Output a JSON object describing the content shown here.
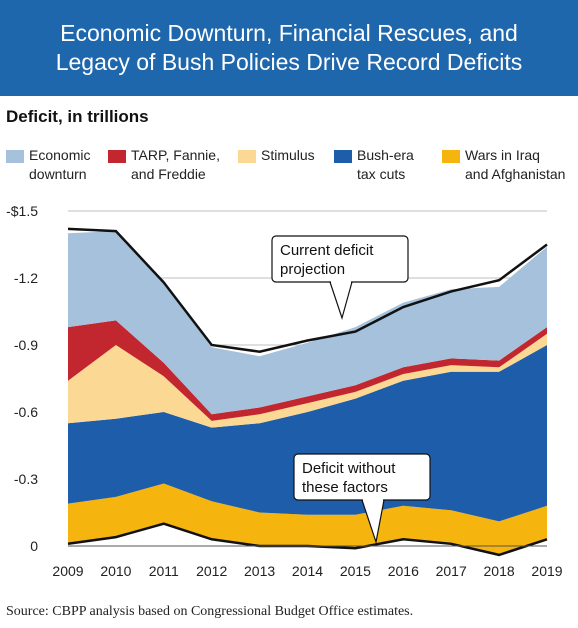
{
  "title": "Economic Downturn, Financial Rescues, and Legacy of Bush Policies Drive Record Deficits",
  "subtitle": "Deficit, in trillions",
  "source": "Source: CBPP analysis based on Congressional Budget Office estimates.",
  "callouts": {
    "current": "Current deficit\nprojection",
    "without": "Deficit without\nthese factors"
  },
  "colors": {
    "title_bg": "#1f67ad",
    "economic": "#a6c1dc",
    "tarp": "#c2262e",
    "stimulus": "#fbd893",
    "bush": "#1d5da9",
    "wars": "#f6b40f"
  },
  "chart_data": {
    "type": "area",
    "x": [
      "2009",
      "2010",
      "2011",
      "2012",
      "2013",
      "2014",
      "2015",
      "2016",
      "2017",
      "2018",
      "2019"
    ],
    "y_ticks": [
      "-$1.5",
      "-1.2",
      "-0.9",
      "-0.6",
      "-0.3",
      "0"
    ],
    "ylim": [
      0,
      -1.5
    ],
    "series": [
      {
        "name": "Wars in Iraq\nand Afghanistan",
        "color": "wars",
        "values": [
          0.18,
          0.18,
          0.18,
          0.17,
          0.15,
          0.14,
          0.15,
          0.15,
          0.15,
          0.15,
          0.15
        ]
      },
      {
        "name": "Bush-era\ntax cuts",
        "color": "bush",
        "values": [
          0.36,
          0.35,
          0.32,
          0.33,
          0.4,
          0.46,
          0.52,
          0.56,
          0.62,
          0.67,
          0.72
        ]
      },
      {
        "name": "Stimulus",
        "color": "stimulus",
        "values": [
          0.19,
          0.33,
          0.16,
          0.03,
          0.04,
          0.04,
          0.03,
          0.03,
          0.03,
          0.02,
          0.05
        ]
      },
      {
        "name": "TARP, Fannie,\nand Freddie",
        "color": "tarp",
        "values": [
          0.24,
          0.11,
          0.06,
          0.03,
          0.03,
          0.03,
          0.03,
          0.03,
          0.03,
          0.03,
          0.03
        ]
      },
      {
        "name": "Economic\ndownturn",
        "color": "economic",
        "values": [
          0.42,
          0.4,
          0.37,
          0.3,
          0.23,
          0.24,
          0.26,
          0.29,
          0.31,
          0.33,
          0.36
        ]
      }
    ],
    "current_deficit": [
      1.42,
      1.41,
      1.18,
      0.9,
      0.87,
      0.92,
      0.96,
      1.07,
      1.14,
      1.19,
      1.35
    ],
    "without_factors": [
      0.01,
      0.04,
      0.1,
      0.03,
      0.0,
      0.0,
      -0.01,
      0.03,
      0.01,
      -0.04,
      0.03
    ]
  }
}
